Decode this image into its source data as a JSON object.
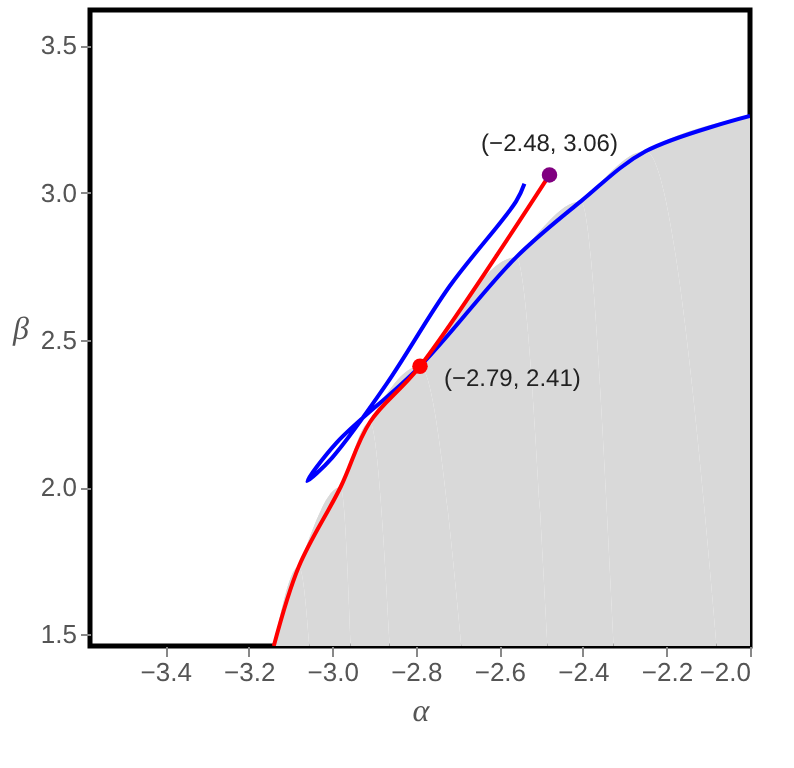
{
  "chart_data": {
    "type": "line",
    "xlabel": "α",
    "ylabel": "β",
    "xlim": [
      -3.58,
      -2.0
    ],
    "ylim": [
      1.46,
      3.62
    ],
    "xticks": [
      {
        "value": -3.4,
        "label": "−3.4"
      },
      {
        "value": -3.2,
        "label": "−3.2"
      },
      {
        "value": -3.0,
        "label": "−3.0"
      },
      {
        "value": -2.8,
        "label": "−2.8"
      },
      {
        "value": -2.6,
        "label": "−2.6"
      },
      {
        "value": -2.4,
        "label": "−2.4"
      },
      {
        "value": -2.2,
        "label": "−2.2"
      },
      {
        "value": -2.0,
        "label": "−2.0"
      }
    ],
    "yticks": [
      1.5,
      {
        "value": 2.0,
        "label": "2.0"
      },
      2.5,
      {
        "value": 3.0,
        "label": "3.0"
      },
      3.5
    ],
    "grid": false,
    "series": [
      {
        "type": "area",
        "color": "#d9d9d9",
        "x": [
          -3.14,
          -3.08,
          -2.98,
          -2.91,
          -2.79,
          -2.56,
          -2.405,
          -2.25,
          -2.0
        ],
        "values": [
          1.46,
          1.73,
          2.0,
          2.22,
          2.41,
          2.78,
          2.97,
          3.14,
          3.26
        ]
      },
      {
        "color": "#0000ff",
        "x": [
          -2.54,
          -2.56,
          -2.72,
          -2.87,
          -3.0,
          -3.06,
          -2.99,
          -2.79,
          -2.56,
          -2.405,
          -2.25,
          -2.0
        ],
        "values": [
          3.03,
          2.97,
          2.68,
          2.35,
          2.1,
          2.02,
          2.15,
          2.41,
          2.78,
          2.97,
          3.14,
          3.26
        ]
      },
      {
        "color": "#ff0000",
        "x": [
          -3.14,
          -3.08,
          -2.98,
          -2.91,
          -2.79,
          -2.48
        ],
        "values": [
          1.46,
          1.73,
          2.0,
          2.22,
          2.41,
          3.06
        ]
      },
      {
        "type": "scatter",
        "color": "#ff0000",
        "x": [
          -2.79
        ],
        "values": [
          2.41
        ]
      },
      {
        "type": "scatter",
        "color": "#800080",
        "x": [
          -2.48
        ],
        "values": [
          3.06
        ]
      }
    ],
    "annotations": [
      {
        "text": "(−2.79, 2.41)",
        "x": -2.79,
        "y": 2.41
      },
      {
        "text": "(−2.48, 3.06)",
        "x": -2.48,
        "y": 3.06
      }
    ]
  }
}
